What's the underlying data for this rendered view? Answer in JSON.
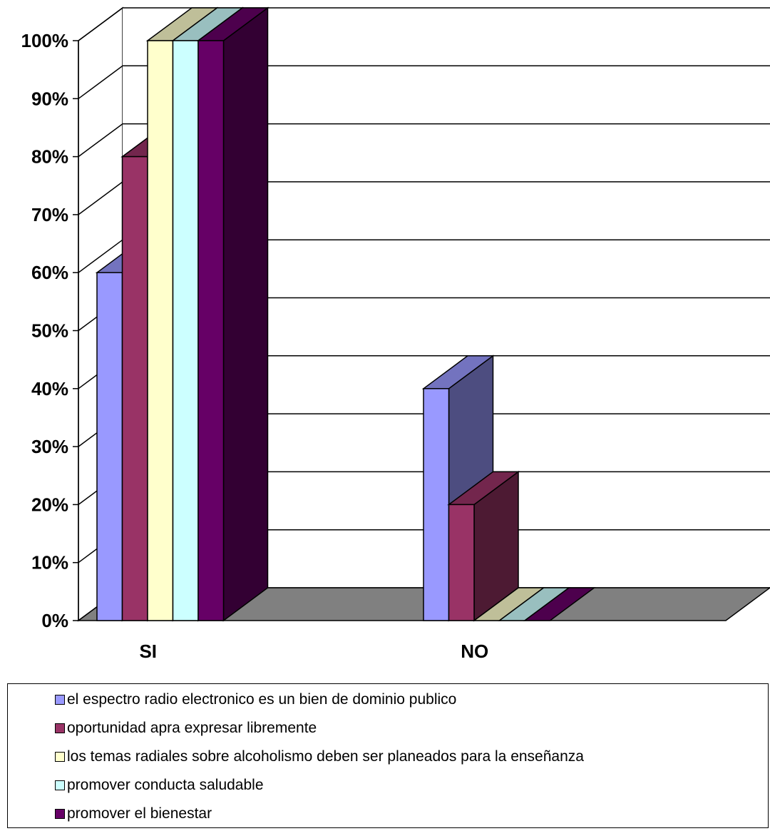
{
  "chart_data": {
    "type": "bar",
    "categories": [
      "SI",
      "NO"
    ],
    "ylim": [
      0,
      100
    ],
    "y_ticks": [
      "0%",
      "10%",
      "20%",
      "30%",
      "40%",
      "50%",
      "60%",
      "70%",
      "80%",
      "90%",
      "100%"
    ],
    "grid": true,
    "legend_position": "bottom",
    "three_d": true,
    "series": [
      {
        "name": "el espectro radio electronico es un bien de dominio publico",
        "values": [
          60,
          40
        ],
        "color": "#9999ff"
      },
      {
        "name": "oportunidad apra expresar libremente",
        "values": [
          80,
          20
        ],
        "color": "#993366"
      },
      {
        "name": "los temas radiales sobre alcoholismo deben ser planeados para la enseñanza",
        "values": [
          100,
          0
        ],
        "color": "#ffffcc"
      },
      {
        "name": "promover conducta saludable",
        "values": [
          100,
          0
        ],
        "color": "#ccffff"
      },
      {
        "name": "promover el bienestar",
        "values": [
          100,
          0
        ],
        "color": "#660066"
      }
    ]
  }
}
